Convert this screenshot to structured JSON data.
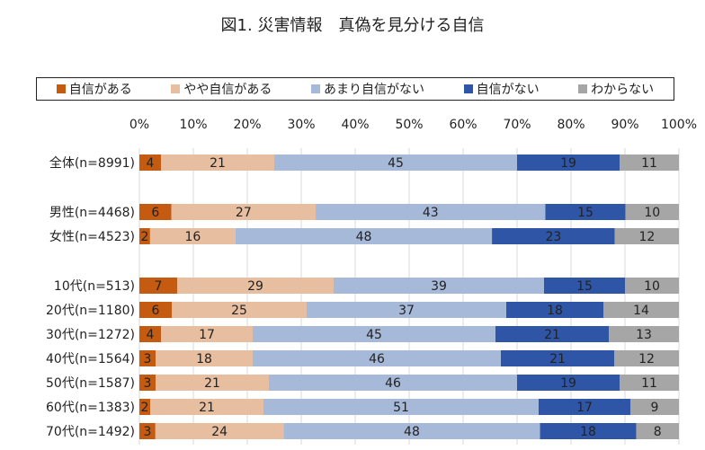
{
  "chart_data": {
    "type": "bar",
    "orientation": "horizontal",
    "stacked": "percent",
    "title": "図1. 災害情報　真偽を見分ける自信",
    "x_ticks": [
      "0%",
      "10%",
      "20%",
      "30%",
      "40%",
      "50%",
      "60%",
      "70%",
      "80%",
      "90%",
      "100%"
    ],
    "xlim": [
      0,
      100
    ],
    "grid": true,
    "legend_position": "top",
    "categories": [
      "全体(n=8991)",
      "男性(n=4468)",
      "女性(n=4523)",
      "10代(n=513)",
      "20代(n=1180)",
      "30代(n=1272)",
      "40代(n=1564)",
      "50代(n=1587)",
      "60代(n=1383)",
      "70代(n=1492)"
    ],
    "series": [
      {
        "name": "自信がある",
        "color": "#C55A11",
        "values": [
          4,
          6,
          2,
          7,
          6,
          4,
          3,
          3,
          2,
          3
        ]
      },
      {
        "name": "やや自信がある",
        "color": "#E8BEA0",
        "values": [
          21,
          27,
          16,
          29,
          25,
          17,
          18,
          21,
          21,
          24
        ]
      },
      {
        "name": "あまり自信がない",
        "color": "#A6B9D8",
        "values": [
          45,
          43,
          48,
          39,
          37,
          45,
          46,
          46,
          51,
          48
        ]
      },
      {
        "name": "自信がない",
        "color": "#2F56A6",
        "values": [
          19,
          15,
          23,
          15,
          18,
          21,
          21,
          19,
          17,
          18
        ]
      },
      {
        "name": "わからない",
        "color": "#A6A6A6",
        "values": [
          11,
          10,
          12,
          10,
          14,
          13,
          12,
          11,
          9,
          8
        ]
      }
    ]
  }
}
